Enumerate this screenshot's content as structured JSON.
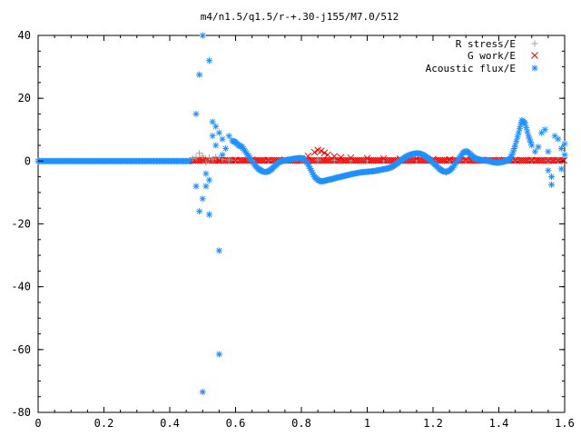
{
  "chart_data": {
    "type": "scatter",
    "title": "m4/n1.5/q1.5/r-+.30-j155/M7.0/512",
    "xlabel": "",
    "ylabel": "",
    "xlim": [
      0,
      1.6
    ],
    "ylim": [
      -80,
      40
    ],
    "xticks": [
      0,
      0.2,
      0.4,
      0.6,
      0.8,
      1,
      1.2,
      1.4,
      1.6
    ],
    "xtick_labels": [
      "0",
      "0.2",
      "0.4",
      "0.6",
      "0.8",
      "1",
      "1.2",
      "1.4",
      "1.6"
    ],
    "yticks": [
      -80,
      -60,
      -40,
      -20,
      0,
      20,
      40
    ],
    "ytick_labels": [
      "-80",
      "-60",
      "-40",
      "-20",
      "0",
      "20",
      "40"
    ],
    "grid": false,
    "legend_position": "top-right",
    "series": [
      {
        "name": "R stress/E",
        "marker": "+",
        "color": "#a0a0a0",
        "points": [
          [
            0.47,
            0.8
          ],
          [
            0.48,
            1.2
          ],
          [
            0.49,
            2.5
          ],
          [
            0.5,
            1.6
          ],
          [
            0.51,
            -0.5
          ],
          [
            0.52,
            1.1
          ],
          [
            0.53,
            0.6
          ],
          [
            0.54,
            1.3
          ],
          [
            0.55,
            0.9
          ],
          [
            0.56,
            0.5
          ],
          [
            0.58,
            0.4
          ],
          [
            0.6,
            0.3
          ],
          [
            0.65,
            0.2
          ],
          [
            0.7,
            0.2
          ],
          [
            0.75,
            0.3
          ],
          [
            0.8,
            0.3
          ],
          [
            0.85,
            0.4
          ],
          [
            0.9,
            0.3
          ],
          [
            0.95,
            0.2
          ],
          [
            1.0,
            0.2
          ],
          [
            1.05,
            0.2
          ],
          [
            1.1,
            0.2
          ],
          [
            1.15,
            0.3
          ],
          [
            1.2,
            0.2
          ],
          [
            1.25,
            0.2
          ],
          [
            1.3,
            0.3
          ],
          [
            1.35,
            0.2
          ],
          [
            1.4,
            0.2
          ],
          [
            1.45,
            0.3
          ],
          [
            1.5,
            0.3
          ],
          [
            1.55,
            0.2
          ],
          [
            1.58,
            0.2
          ]
        ]
      },
      {
        "name": "G work/E",
        "marker": "x",
        "color": "#ff0000",
        "points": [
          [
            0.5,
            0.3
          ],
          [
            0.55,
            0.2
          ],
          [
            0.6,
            0.3
          ],
          [
            0.65,
            0.4
          ],
          [
            0.7,
            0.3
          ],
          [
            0.75,
            0.4
          ],
          [
            0.8,
            0.8
          ],
          [
            0.82,
            1.6
          ],
          [
            0.84,
            2.8
          ],
          [
            0.85,
            3.5
          ],
          [
            0.86,
            3.2
          ],
          [
            0.87,
            2.6
          ],
          [
            0.88,
            2.0
          ],
          [
            0.9,
            1.5
          ],
          [
            0.92,
            1.2
          ],
          [
            0.95,
            1.0
          ],
          [
            1.0,
            0.9
          ],
          [
            1.05,
            0.8
          ],
          [
            1.1,
            0.7
          ],
          [
            1.15,
            0.8
          ],
          [
            1.2,
            0.6
          ],
          [
            1.25,
            0.5
          ],
          [
            1.3,
            0.5
          ],
          [
            1.35,
            0.4
          ],
          [
            1.4,
            0.3
          ],
          [
            1.45,
            0.3
          ],
          [
            1.5,
            0.3
          ],
          [
            1.55,
            0.2
          ],
          [
            1.58,
            0.2
          ]
        ]
      },
      {
        "name": "Acoustic flux/E",
        "marker": "*",
        "color": "#1e90ff",
        "points": [
          [
            0.48,
            15
          ],
          [
            0.48,
            -8
          ],
          [
            0.49,
            -16
          ],
          [
            0.49,
            27.5
          ],
          [
            0.5,
            40
          ],
          [
            0.5,
            -73.5
          ],
          [
            0.5,
            -12
          ],
          [
            0.51,
            -4
          ],
          [
            0.51,
            -8
          ],
          [
            0.52,
            32
          ],
          [
            0.52,
            -17
          ],
          [
            0.52,
            -6
          ],
          [
            0.53,
            12.5
          ],
          [
            0.53,
            8
          ],
          [
            0.54,
            5
          ],
          [
            0.54,
            11
          ],
          [
            0.55,
            -28.5
          ],
          [
            0.55,
            -61.5
          ],
          [
            0.55,
            9
          ],
          [
            0.56,
            7
          ],
          [
            0.56,
            2
          ],
          [
            0.57,
            4
          ],
          [
            0.58,
            8
          ],
          [
            0.59,
            6.5
          ],
          [
            0.6,
            6
          ],
          [
            0.61,
            5
          ],
          [
            0.62,
            4.5
          ],
          [
            0.63,
            3
          ],
          [
            0.64,
            1.5
          ],
          [
            0.65,
            0
          ],
          [
            0.66,
            -1.5
          ],
          [
            0.67,
            -2.5
          ],
          [
            0.68,
            -3.2
          ],
          [
            0.69,
            -3.5
          ],
          [
            0.7,
            -3.3
          ],
          [
            0.71,
            -2.5
          ],
          [
            0.72,
            -1.5
          ],
          [
            0.73,
            -0.5
          ],
          [
            0.74,
            0
          ],
          [
            0.75,
            0.2
          ],
          [
            0.76,
            0.4
          ],
          [
            0.77,
            0.6
          ],
          [
            0.78,
            0.8
          ],
          [
            0.79,
            0.9
          ],
          [
            0.8,
            1.0
          ],
          [
            0.81,
            0.5
          ],
          [
            0.82,
            -1
          ],
          [
            0.83,
            -3
          ],
          [
            0.84,
            -5
          ],
          [
            0.85,
            -6
          ],
          [
            0.86,
            -6.5
          ],
          [
            0.87,
            -6.3
          ],
          [
            0.88,
            -6
          ],
          [
            0.89,
            -5.8
          ],
          [
            0.9,
            -5.5
          ],
          [
            0.91,
            -5.2
          ],
          [
            0.92,
            -5
          ],
          [
            0.93,
            -4.7
          ],
          [
            0.94,
            -4.5
          ],
          [
            0.95,
            -4.2
          ],
          [
            0.96,
            -4
          ],
          [
            0.97,
            -3.8
          ],
          [
            0.98,
            -3.6
          ],
          [
            0.99,
            -3.5
          ],
          [
            1.0,
            -3.4
          ],
          [
            1.01,
            -3.3
          ],
          [
            1.02,
            -3.2
          ],
          [
            1.03,
            -3
          ],
          [
            1.04,
            -2.8
          ],
          [
            1.05,
            -2.6
          ],
          [
            1.06,
            -2.4
          ],
          [
            1.07,
            -2.1
          ],
          [
            1.08,
            -1.5
          ],
          [
            1.09,
            -0.8
          ],
          [
            1.1,
            0
          ],
          [
            1.11,
            0.8
          ],
          [
            1.12,
            1.5
          ],
          [
            1.13,
            2
          ],
          [
            1.14,
            2.3
          ],
          [
            1.15,
            2.5
          ],
          [
            1.16,
            2.4
          ],
          [
            1.17,
            2
          ],
          [
            1.18,
            1.3
          ],
          [
            1.19,
            0.5
          ],
          [
            1.2,
            -0.5
          ],
          [
            1.21,
            -1.5
          ],
          [
            1.22,
            -2.5
          ],
          [
            1.23,
            -3.2
          ],
          [
            1.24,
            -3.5
          ],
          [
            1.25,
            -3
          ],
          [
            1.26,
            -2
          ],
          [
            1.27,
            -0.5
          ],
          [
            1.28,
            1
          ],
          [
            1.29,
            2.5
          ],
          [
            1.3,
            3.2
          ],
          [
            1.31,
            2.5
          ],
          [
            1.32,
            1.5
          ],
          [
            1.33,
            0.8
          ],
          [
            1.34,
            0.5
          ],
          [
            1.35,
            0.3
          ],
          [
            1.36,
            0.2
          ],
          [
            1.37,
            0
          ],
          [
            1.38,
            -0.3
          ],
          [
            1.39,
            -0.5
          ],
          [
            1.4,
            -0.5
          ],
          [
            1.41,
            -0.3
          ],
          [
            1.42,
            0
          ],
          [
            1.43,
            0.3
          ],
          [
            1.44,
            2
          ],
          [
            1.45,
            5
          ],
          [
            1.46,
            9
          ],
          [
            1.47,
            13
          ],
          [
            1.48,
            12
          ],
          [
            1.49,
            8
          ],
          [
            1.5,
            5
          ],
          [
            1.51,
            3
          ],
          [
            1.52,
            4.5
          ],
          [
            1.53,
            9
          ],
          [
            1.54,
            10
          ],
          [
            1.55,
            3
          ],
          [
            1.55,
            -3
          ],
          [
            1.56,
            -7.5
          ],
          [
            1.56,
            -5
          ],
          [
            1.57,
            8
          ],
          [
            1.58,
            7
          ],
          [
            1.59,
            4
          ],
          [
            1.59,
            -2.5
          ],
          [
            1.6,
            5.5
          ],
          [
            1.6,
            2
          ]
        ]
      }
    ]
  }
}
